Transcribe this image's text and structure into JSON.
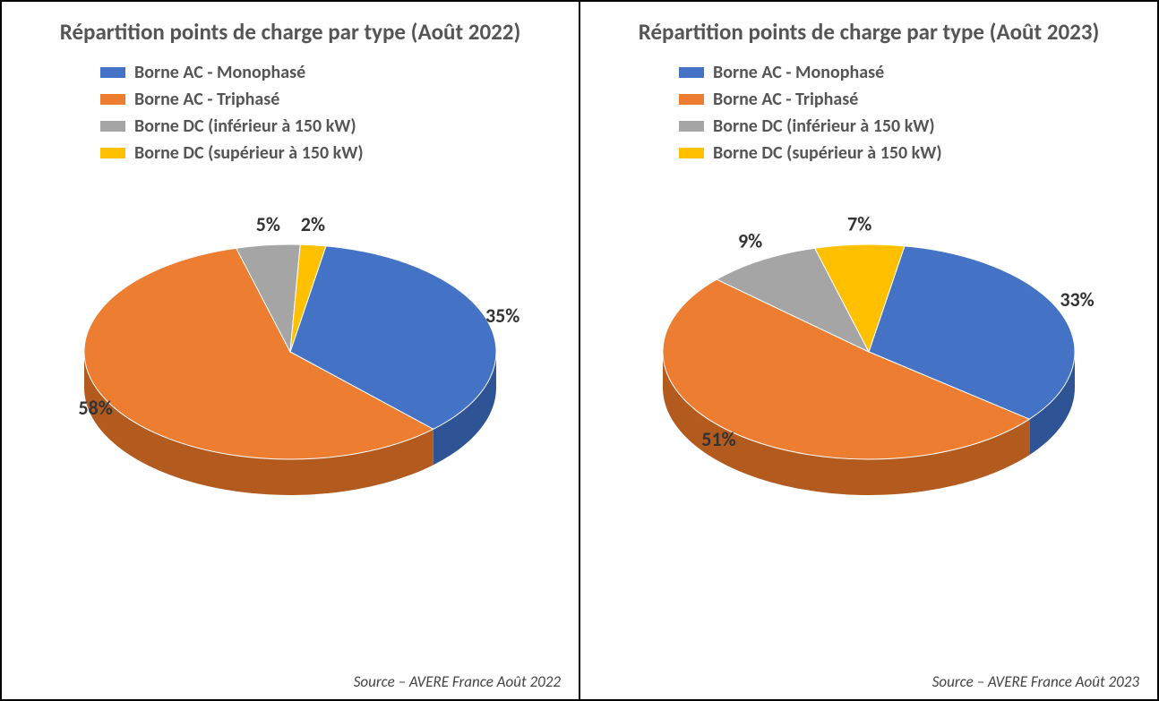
{
  "charts": [
    {
      "type": "pie-3d",
      "title": "Répartition points de charge par type (Août 2022)",
      "source": "Source – AVERE France Août 2022",
      "legend_items": [
        {
          "label": "Borne AC - Monophasé",
          "color": "#4472c4"
        },
        {
          "label": "Borne AC - Triphasé",
          "color": "#ed7d31"
        },
        {
          "label": "Borne DC (inférieur à 150 kW)",
          "color": "#a5a5a5"
        },
        {
          "label": "Borne DC (supérieur à 150 kW)",
          "color": "#ffc000"
        }
      ],
      "slices": [
        {
          "value": 35,
          "label": "35%",
          "color": "#4472c4",
          "side_color": "#2f5496"
        },
        {
          "value": 58,
          "label": "58%",
          "color": "#ed7d31",
          "side_color": "#b35a1f"
        },
        {
          "value": 5,
          "label": "5%",
          "color": "#a5a5a5",
          "side_color": "#7b7b7b"
        },
        {
          "value": 2,
          "label": "2%",
          "color": "#ffc000",
          "side_color": "#c09000"
        }
      ],
      "label_fontsize": 22,
      "label_color": "#333333",
      "pie_rx": 230,
      "pie_ry": 120,
      "pie_depth": 40,
      "start_angle_deg": -80,
      "background_color": "#ffffff",
      "title_fontsize": 25,
      "title_color": "#555555",
      "legend_fontsize": 20
    },
    {
      "type": "pie-3d",
      "title": "Répartition points de charge par type (Août 2023)",
      "source": "Source – AVERE France Août 2023",
      "legend_items": [
        {
          "label": "Borne AC - Monophasé",
          "color": "#4472c4"
        },
        {
          "label": "Borne AC - Triphasé",
          "color": "#ed7d31"
        },
        {
          "label": "Borne DC (inférieur à 150 kW)",
          "color": "#a5a5a5"
        },
        {
          "label": "Borne DC (supérieur à 150 kW)",
          "color": "#ffc000"
        }
      ],
      "slices": [
        {
          "value": 33,
          "label": "33%",
          "color": "#4472c4",
          "side_color": "#2f5496"
        },
        {
          "value": 51,
          "label": "51%",
          "color": "#ed7d31",
          "side_color": "#b35a1f"
        },
        {
          "value": 9,
          "label": "9%",
          "color": "#a5a5a5",
          "side_color": "#7b7b7b"
        },
        {
          "value": 7,
          "label": "7%",
          "color": "#ffc000",
          "side_color": "#c09000"
        }
      ],
      "label_fontsize": 22,
      "label_color": "#333333",
      "pie_rx": 230,
      "pie_ry": 120,
      "pie_depth": 40,
      "start_angle_deg": -80,
      "background_color": "#ffffff",
      "title_fontsize": 25,
      "title_color": "#555555",
      "legend_fontsize": 20
    }
  ]
}
